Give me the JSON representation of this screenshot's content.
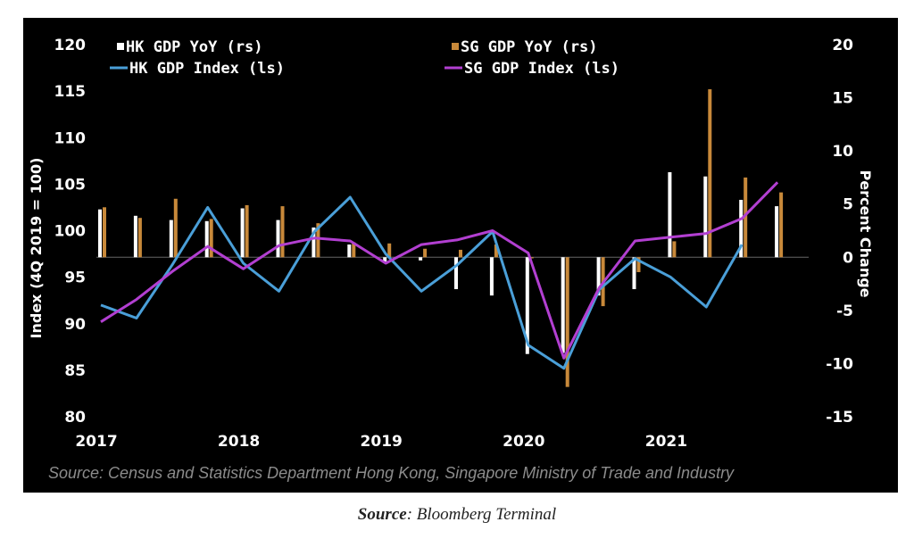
{
  "chart_data": {
    "type": "bar+line",
    "x": [
      "2017Q1",
      "2017Q2",
      "2017Q3",
      "2017Q4",
      "2018Q1",
      "2018Q2",
      "2018Q3",
      "2018Q4",
      "2019Q1",
      "2019Q2",
      "2019Q3",
      "2019Q4",
      "2020Q1",
      "2020Q2",
      "2020Q3",
      "2020Q4",
      "2021Q1",
      "2021Q2",
      "2021Q3",
      "2021Q4"
    ],
    "xticks": [
      "2017",
      "2018",
      "2019",
      "2020",
      "2021"
    ],
    "left_axis": {
      "label": "Index (4Q 2019 = 100)",
      "ylim": [
        80,
        120
      ],
      "ticks": [
        80,
        85,
        90,
        95,
        100,
        105,
        110,
        115,
        120
      ]
    },
    "right_axis": {
      "label": "Percent Change",
      "ylim": [
        -15,
        20
      ],
      "ticks": [
        -15,
        -10,
        -5,
        0,
        5,
        10,
        15,
        20
      ]
    },
    "series": [
      {
        "name": "HK GDP YoY (rs)",
        "type": "bar",
        "axis": "right",
        "color": "#ffffff",
        "values": [
          4.5,
          3.9,
          3.5,
          3.4,
          4.6,
          3.5,
          2.8,
          1.2,
          -0.4,
          -0.3,
          -3.0,
          -3.6,
          -9.1,
          -9.0,
          -3.6,
          -3.0,
          8.0,
          7.6,
          5.4,
          4.8
        ]
      },
      {
        "name": "SG GDP YoY (rs)",
        "type": "bar",
        "axis": "right",
        "color": "#c8893a",
        "values": [
          4.7,
          3.7,
          5.5,
          3.6,
          4.9,
          4.8,
          3.2,
          1.4,
          1.3,
          0.8,
          0.7,
          1.2,
          -0.1,
          -12.2,
          -4.6,
          -1.4,
          1.5,
          15.8,
          7.5,
          6.1
        ]
      },
      {
        "name": "HK GDP Index (ls)",
        "type": "line",
        "axis": "left",
        "color": "#4a9fd8",
        "values": [
          92.0,
          90.6,
          96.3,
          102.5,
          96.5,
          93.5,
          99.9,
          103.6,
          97.5,
          93.5,
          96.3,
          99.9,
          87.7,
          85.2,
          93.7,
          97.0,
          95.0,
          91.8,
          98.5,
          null
        ]
      },
      {
        "name": "SG GDP Index (ls)",
        "type": "line",
        "axis": "left",
        "color": "#b23fd1",
        "values": [
          90.2,
          92.6,
          95.6,
          98.3,
          95.9,
          98.4,
          99.2,
          98.9,
          96.5,
          98.5,
          99.0,
          100.0,
          97.6,
          86.3,
          93.9,
          98.9,
          99.3,
          99.7,
          101.3,
          105.2
        ]
      }
    ]
  },
  "source_note": "Source: Census and Statistics Department Hong Kong, Singapore Ministry of Trade and Industry",
  "caption": {
    "label": "Source",
    "text": ": Bloomberg Terminal"
  }
}
